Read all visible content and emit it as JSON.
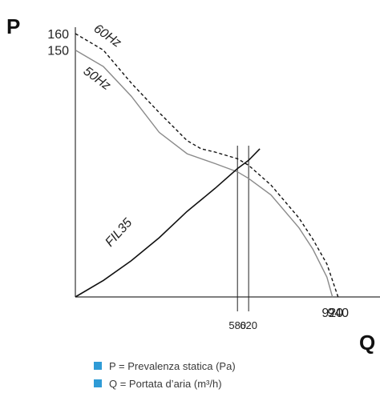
{
  "chart_data": {
    "type": "line",
    "y_axis_symbol": "P",
    "x_axis_symbol": "Q",
    "y_ticks": [
      "160",
      "150"
    ],
    "x_ticks": [
      "580",
      "620",
      "920",
      "940"
    ],
    "xlim": [
      0,
      1090
    ],
    "ylim": [
      0,
      160
    ],
    "grid": false,
    "series": [
      {
        "name": "60Hz",
        "style": "dashed",
        "color": "#111111",
        "points": [
          [
            0,
            160
          ],
          [
            100,
            150
          ],
          [
            200,
            130
          ],
          [
            300,
            112
          ],
          [
            400,
            95
          ],
          [
            450,
            90
          ],
          [
            500,
            88
          ],
          [
            580,
            84
          ],
          [
            620,
            80
          ],
          [
            700,
            68
          ],
          [
            800,
            48
          ],
          [
            850,
            35
          ],
          [
            900,
            20
          ],
          [
            940,
            0
          ]
        ]
      },
      {
        "name": "50Hz",
        "style": "solid",
        "color": "#8a8a8a",
        "points": [
          [
            0,
            150
          ],
          [
            100,
            140
          ],
          [
            200,
            122
          ],
          [
            300,
            100
          ],
          [
            400,
            87
          ],
          [
            500,
            81
          ],
          [
            580,
            76
          ],
          [
            620,
            72
          ],
          [
            700,
            62
          ],
          [
            800,
            42
          ],
          [
            850,
            29
          ],
          [
            900,
            12
          ],
          [
            920,
            0
          ]
        ]
      },
      {
        "name": "FIL35",
        "style": "solid",
        "color": "#111111",
        "points": [
          [
            0,
            0
          ],
          [
            100,
            10
          ],
          [
            200,
            22
          ],
          [
            300,
            36
          ],
          [
            400,
            52
          ],
          [
            500,
            66
          ],
          [
            580,
            78
          ],
          [
            620,
            83
          ],
          [
            660,
            90
          ]
        ]
      }
    ],
    "operating_points": [
      {
        "label": "580",
        "x": 580
      },
      {
        "label": "620",
        "x": 620
      }
    ]
  },
  "legend": {
    "swatch_color": "#2f9bd6",
    "items": [
      {
        "text": "P = Prevalenza statica (Pa)"
      },
      {
        "text": "Q = Portata d’aria (m³/h)"
      }
    ]
  }
}
